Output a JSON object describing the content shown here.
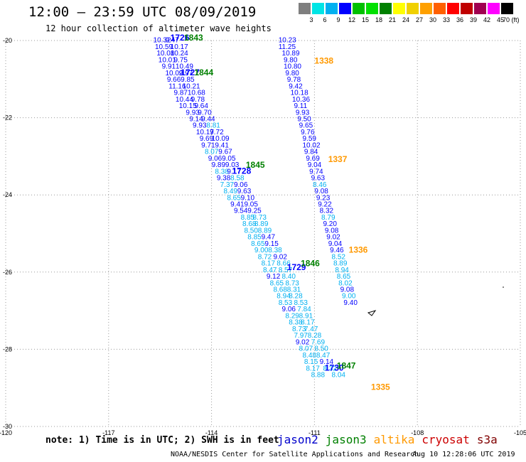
{
  "title": "12:00 – 23:59 UTC 08/09/2019",
  "subtitle": "12 hour collection of altimeter wave heights",
  "colorbar": {
    "ticks": [
      "3",
      "6",
      "9",
      "12",
      "15",
      "18",
      "21",
      "24",
      "27",
      "30",
      "33",
      "36",
      "39",
      "42",
      "45",
      "70 (ft)"
    ],
    "colors": [
      "#7f7f7f",
      "#00e5e5",
      "#00b0f0",
      "#0000ff",
      "#00c000",
      "#00e000",
      "#008000",
      "#ffff00",
      "#f0d000",
      "#ffa000",
      "#ff6000",
      "#ff0000",
      "#c00000",
      "#a00050",
      "#ff00ff",
      "#000000"
    ]
  },
  "chart_data": {
    "type": "scatter",
    "x_ticks": [
      "-120",
      "-117",
      "-114",
      "-111",
      "-108",
      "-105"
    ],
    "y_ticks": [
      "-20",
      "-22",
      "-24",
      "-26",
      "-28",
      "-30"
    ],
    "xlim": [
      -120,
      -105
    ],
    "ylim": [
      -30,
      -20
    ],
    "grid": true,
    "series": [
      {
        "name": "jason2",
        "color": "#0000cc"
      },
      {
        "name": "jason3",
        "color": "#008000"
      },
      {
        "name": "altika",
        "color": "#ff9900"
      }
    ],
    "points": [
      {
        "x": -115.7,
        "y": -20.05,
        "v": "10.32",
        "c": "#0000ff"
      },
      {
        "x": -115.35,
        "y": -20.05,
        "v": "9.47",
        "c": "#0000ff"
      },
      {
        "x": -115.65,
        "y": -20.22,
        "v": "10.59",
        "c": "#0000ff"
      },
      {
        "x": -115.2,
        "y": -20.22,
        "v": "10.17",
        "c": "#0000ff"
      },
      {
        "x": -115.6,
        "y": -20.39,
        "v": "10.08",
        "c": "#0000ff"
      },
      {
        "x": -115.2,
        "y": -20.39,
        "v": "10.24",
        "c": "#0000ff"
      },
      {
        "x": -115.55,
        "y": -20.56,
        "v": "10.01",
        "c": "#0000ff"
      },
      {
        "x": -115.1,
        "y": -20.56,
        "v": "9.75",
        "c": "#0000ff"
      },
      {
        "x": -115.45,
        "y": -20.73,
        "v": "9.91",
        "c": "#0000ff"
      },
      {
        "x": -115.05,
        "y": -20.73,
        "v": "10.49",
        "c": "#0000ff"
      },
      {
        "x": -115.35,
        "y": -20.9,
        "v": "10.02",
        "c": "#0000ff"
      },
      {
        "x": -114.95,
        "y": -20.9,
        "v": "9.97",
        "c": "#0000ff"
      },
      {
        "x": -115.3,
        "y": -21.07,
        "v": "9.66",
        "c": "#0000ff"
      },
      {
        "x": -114.9,
        "y": -21.07,
        "v": "9.85",
        "c": "#0000ff"
      },
      {
        "x": -115.25,
        "y": -21.24,
        "v": "11.16",
        "c": "#0000ff"
      },
      {
        "x": -114.85,
        "y": -21.24,
        "v": "10.21",
        "c": "#0000ff"
      },
      {
        "x": -115.1,
        "y": -21.41,
        "v": "9.87",
        "c": "#0000ff"
      },
      {
        "x": -114.7,
        "y": -21.41,
        "v": "10.68",
        "c": "#0000ff"
      },
      {
        "x": -115.05,
        "y": -21.58,
        "v": "10.44",
        "c": "#0000ff"
      },
      {
        "x": -114.6,
        "y": -21.58,
        "v": "9.78",
        "c": "#0000ff"
      },
      {
        "x": -114.95,
        "y": -21.75,
        "v": "10.15",
        "c": "#0000ff"
      },
      {
        "x": -114.5,
        "y": -21.75,
        "v": "9.64",
        "c": "#0000ff"
      },
      {
        "x": -114.75,
        "y": -21.92,
        "v": "9.93",
        "c": "#0000ff"
      },
      {
        "x": -114.4,
        "y": -21.92,
        "v": "9.70",
        "c": "#0000ff"
      },
      {
        "x": -114.65,
        "y": -22.09,
        "v": "9.14",
        "c": "#0000ff"
      },
      {
        "x": -114.3,
        "y": -22.09,
        "v": "9.44",
        "c": "#0000ff"
      },
      {
        "x": -114.55,
        "y": -22.26,
        "v": "9.93",
        "c": "#0000ff"
      },
      {
        "x": -114.15,
        "y": -22.26,
        "v": "8.81",
        "c": "#00b0f0"
      },
      {
        "x": -114.45,
        "y": -22.43,
        "v": "10.17",
        "c": "#0000ff"
      },
      {
        "x": -114.05,
        "y": -22.43,
        "v": "9.72",
        "c": "#0000ff"
      },
      {
        "x": -114.35,
        "y": -22.6,
        "v": "9.69",
        "c": "#0000ff"
      },
      {
        "x": -114.0,
        "y": -22.6,
        "v": "10.09",
        "c": "#0000ff"
      },
      {
        "x": -114.3,
        "y": -22.77,
        "v": "9.71",
        "c": "#0000ff"
      },
      {
        "x": -113.9,
        "y": -22.77,
        "v": "9.41",
        "c": "#0000ff"
      },
      {
        "x": -114.2,
        "y": -22.94,
        "v": "8.07",
        "c": "#00b0f0"
      },
      {
        "x": -113.8,
        "y": -22.94,
        "v": "9.67",
        "c": "#0000ff"
      },
      {
        "x": -114.1,
        "y": -23.11,
        "v": "9.06",
        "c": "#0000ff"
      },
      {
        "x": -113.7,
        "y": -23.11,
        "v": "9.05",
        "c": "#0000ff"
      },
      {
        "x": -114.0,
        "y": -23.28,
        "v": "9.89",
        "c": "#0000ff"
      },
      {
        "x": -113.6,
        "y": -23.28,
        "v": "9.03",
        "c": "#0000ff"
      },
      {
        "x": -113.9,
        "y": -23.45,
        "v": "8.38",
        "c": "#00b0f0"
      },
      {
        "x": -113.55,
        "y": -23.45,
        "v": "9.17",
        "c": "#0000ff"
      },
      {
        "x": -113.85,
        "y": -23.62,
        "v": "9.38",
        "c": "#0000ff"
      },
      {
        "x": -113.45,
        "y": -23.62,
        "v": "8.58",
        "c": "#00b0f0"
      },
      {
        "x": -113.75,
        "y": -23.79,
        "v": "7.37",
        "c": "#00b0f0"
      },
      {
        "x": -113.35,
        "y": -23.79,
        "v": "9.06",
        "c": "#0000ff"
      },
      {
        "x": -113.65,
        "y": -23.96,
        "v": "8.49",
        "c": "#00b0f0"
      },
      {
        "x": -113.25,
        "y": -23.96,
        "v": "9.63",
        "c": "#0000ff"
      },
      {
        "x": -113.55,
        "y": -24.13,
        "v": "8.65",
        "c": "#00b0f0"
      },
      {
        "x": -113.15,
        "y": -24.13,
        "v": "9.10",
        "c": "#0000ff"
      },
      {
        "x": -113.45,
        "y": -24.3,
        "v": "9.41",
        "c": "#0000ff"
      },
      {
        "x": -113.05,
        "y": -24.3,
        "v": "9.05",
        "c": "#0000ff"
      },
      {
        "x": -113.35,
        "y": -24.47,
        "v": "9.54",
        "c": "#0000ff"
      },
      {
        "x": -112.95,
        "y": -24.47,
        "v": "9.25",
        "c": "#0000ff"
      },
      {
        "x": -113.15,
        "y": -24.64,
        "v": "8.85",
        "c": "#00b0f0"
      },
      {
        "x": -112.8,
        "y": -24.64,
        "v": "8.73",
        "c": "#00b0f0"
      },
      {
        "x": -113.1,
        "y": -24.81,
        "v": "8.68",
        "c": "#00b0f0"
      },
      {
        "x": -112.75,
        "y": -24.81,
        "v": "8.89",
        "c": "#00b0f0"
      },
      {
        "x": -113.05,
        "y": -24.98,
        "v": "8.50",
        "c": "#00b0f0"
      },
      {
        "x": -112.65,
        "y": -24.98,
        "v": "8.89",
        "c": "#00b0f0"
      },
      {
        "x": -112.95,
        "y": -25.15,
        "v": "8.85",
        "c": "#00b0f0"
      },
      {
        "x": -112.55,
        "y": -25.15,
        "v": "9.47",
        "c": "#0000ff"
      },
      {
        "x": -112.85,
        "y": -25.32,
        "v": "8.65",
        "c": "#00b0f0"
      },
      {
        "x": -112.45,
        "y": -25.32,
        "v": "9.15",
        "c": "#0000ff"
      },
      {
        "x": -112.75,
        "y": -25.49,
        "v": "9.00",
        "c": "#00b0f0"
      },
      {
        "x": -112.35,
        "y": -25.49,
        "v": "8.38",
        "c": "#00b0f0"
      },
      {
        "x": -112.65,
        "y": -25.66,
        "v": "8.72",
        "c": "#00b0f0"
      },
      {
        "x": -112.2,
        "y": -25.66,
        "v": "9.02",
        "c": "#0000ff"
      },
      {
        "x": -112.55,
        "y": -25.83,
        "v": "8.17",
        "c": "#00b0f0"
      },
      {
        "x": -112.1,
        "y": -25.83,
        "v": "8.66",
        "c": "#00b0f0"
      },
      {
        "x": -112.5,
        "y": -26.0,
        "v": "8.47",
        "c": "#00b0f0"
      },
      {
        "x": -112.05,
        "y": -26.0,
        "v": "8.57",
        "c": "#00b0f0"
      },
      {
        "x": -112.4,
        "y": -26.17,
        "v": "9.12",
        "c": "#0000ff"
      },
      {
        "x": -111.95,
        "y": -26.17,
        "v": "8.40",
        "c": "#00b0f0"
      },
      {
        "x": -112.3,
        "y": -26.34,
        "v": "8.65",
        "c": "#00b0f0"
      },
      {
        "x": -111.85,
        "y": -26.34,
        "v": "8.73",
        "c": "#00b0f0"
      },
      {
        "x": -112.2,
        "y": -26.51,
        "v": "8.68",
        "c": "#00b0f0"
      },
      {
        "x": -111.8,
        "y": -26.51,
        "v": "8.31",
        "c": "#00b0f0"
      },
      {
        "x": -112.1,
        "y": -26.68,
        "v": "8.94",
        "c": "#00b0f0"
      },
      {
        "x": -111.75,
        "y": -26.68,
        "v": "8.28",
        "c": "#00b0f0"
      },
      {
        "x": -112.05,
        "y": -26.85,
        "v": "8.53",
        "c": "#00b0f0"
      },
      {
        "x": -111.6,
        "y": -26.85,
        "v": "8.53",
        "c": "#00b0f0"
      },
      {
        "x": -111.95,
        "y": -27.02,
        "v": "9.06",
        "c": "#0000ff"
      },
      {
        "x": -111.5,
        "y": -27.02,
        "v": "7.84",
        "c": "#00b0f0"
      },
      {
        "x": -111.85,
        "y": -27.19,
        "v": "8.29",
        "c": "#00b0f0"
      },
      {
        "x": -111.45,
        "y": -27.19,
        "v": "8.91",
        "c": "#00b0f0"
      },
      {
        "x": -111.75,
        "y": -27.36,
        "v": "8.38",
        "c": "#00b0f0"
      },
      {
        "x": -111.4,
        "y": -27.36,
        "v": "8.17",
        "c": "#00b0f0"
      },
      {
        "x": -111.65,
        "y": -27.53,
        "v": "8.73",
        "c": "#00b0f0"
      },
      {
        "x": -111.3,
        "y": -27.53,
        "v": "7.47",
        "c": "#00b0f0"
      },
      {
        "x": -111.6,
        "y": -27.7,
        "v": "7.97",
        "c": "#00b0f0"
      },
      {
        "x": -111.2,
        "y": -27.7,
        "v": "8.28",
        "c": "#00b0f0"
      },
      {
        "x": -111.55,
        "y": -27.87,
        "v": "9.02",
        "c": "#0000ff"
      },
      {
        "x": -111.1,
        "y": -27.87,
        "v": "7.69",
        "c": "#00b0f0"
      },
      {
        "x": -111.45,
        "y": -28.04,
        "v": "8.07",
        "c": "#00b0f0"
      },
      {
        "x": -111.0,
        "y": -28.04,
        "v": "8.50",
        "c": "#00b0f0"
      },
      {
        "x": -111.35,
        "y": -28.21,
        "v": "8.48",
        "c": "#00b0f0"
      },
      {
        "x": -110.95,
        "y": -28.21,
        "v": "8.47",
        "c": "#00b0f0"
      },
      {
        "x": -111.3,
        "y": -28.38,
        "v": "8.15",
        "c": "#00b0f0"
      },
      {
        "x": -110.85,
        "y": -28.38,
        "v": "9.14",
        "c": "#0000ff"
      },
      {
        "x": -111.25,
        "y": -28.55,
        "v": "8.17",
        "c": "#00b0f0"
      },
      {
        "x": -110.75,
        "y": -28.55,
        "v": "8.32",
        "c": "#00b0f0"
      },
      {
        "x": -111.1,
        "y": -28.72,
        "v": "8.88",
        "c": "#00b0f0"
      },
      {
        "x": -110.5,
        "y": -28.72,
        "v": "8.04",
        "c": "#00b0f0"
      },
      {
        "x": -112.05,
        "y": -20.05,
        "v": "10.23",
        "c": "#0000ff"
      },
      {
        "x": -112.05,
        "y": -20.22,
        "v": "11.25",
        "c": "#0000ff"
      },
      {
        "x": -111.95,
        "y": -20.39,
        "v": "10.89",
        "c": "#0000ff"
      },
      {
        "x": -111.9,
        "y": -20.56,
        "v": "9.80",
        "c": "#0000ff"
      },
      {
        "x": -111.9,
        "y": -20.73,
        "v": "10.80",
        "c": "#0000ff"
      },
      {
        "x": -111.85,
        "y": -20.9,
        "v": "9.80",
        "c": "#0000ff"
      },
      {
        "x": -111.8,
        "y": -21.07,
        "v": "9.78",
        "c": "#0000ff"
      },
      {
        "x": -111.75,
        "y": -21.24,
        "v": "9.42",
        "c": "#0000ff"
      },
      {
        "x": -111.7,
        "y": -21.41,
        "v": "10.18",
        "c": "#0000ff"
      },
      {
        "x": -111.65,
        "y": -21.58,
        "v": "10.36",
        "c": "#0000ff"
      },
      {
        "x": -111.6,
        "y": -21.75,
        "v": "9.11",
        "c": "#0000ff"
      },
      {
        "x": -111.55,
        "y": -21.92,
        "v": "9.93",
        "c": "#0000ff"
      },
      {
        "x": -111.5,
        "y": -22.09,
        "v": "9.50",
        "c": "#0000ff"
      },
      {
        "x": -111.45,
        "y": -22.26,
        "v": "9.65",
        "c": "#0000ff"
      },
      {
        "x": -111.4,
        "y": -22.43,
        "v": "9.76",
        "c": "#0000ff"
      },
      {
        "x": -111.35,
        "y": -22.6,
        "v": "9.59",
        "c": "#0000ff"
      },
      {
        "x": -111.35,
        "y": -22.77,
        "v": "10.02",
        "c": "#0000ff"
      },
      {
        "x": -111.3,
        "y": -22.94,
        "v": "9.84",
        "c": "#0000ff"
      },
      {
        "x": -111.25,
        "y": -23.11,
        "v": "9.69",
        "c": "#0000ff"
      },
      {
        "x": -111.2,
        "y": -23.28,
        "v": "9.04",
        "c": "#0000ff"
      },
      {
        "x": -111.15,
        "y": -23.45,
        "v": "9.74",
        "c": "#0000ff"
      },
      {
        "x": -111.1,
        "y": -23.62,
        "v": "9.63",
        "c": "#0000ff"
      },
      {
        "x": -111.05,
        "y": -23.79,
        "v": "8.46",
        "c": "#00b0f0"
      },
      {
        "x": -111.0,
        "y": -23.96,
        "v": "9.08",
        "c": "#0000ff"
      },
      {
        "x": -110.95,
        "y": -24.13,
        "v": "9.23",
        "c": "#0000ff"
      },
      {
        "x": -110.9,
        "y": -24.3,
        "v": "9.22",
        "c": "#0000ff"
      },
      {
        "x": -110.85,
        "y": -24.47,
        "v": "8.32",
        "c": "#0000ff"
      },
      {
        "x": -110.8,
        "y": -24.64,
        "v": "8.79",
        "c": "#00b0f0"
      },
      {
        "x": -110.75,
        "y": -24.81,
        "v": "9.20",
        "c": "#0000ff"
      },
      {
        "x": -110.7,
        "y": -24.98,
        "v": "9.08",
        "c": "#0000ff"
      },
      {
        "x": -110.65,
        "y": -25.15,
        "v": "9.02",
        "c": "#0000ff"
      },
      {
        "x": -110.6,
        "y": -25.32,
        "v": "9.04",
        "c": "#0000ff"
      },
      {
        "x": -110.55,
        "y": -25.49,
        "v": "9.46",
        "c": "#0000ff"
      },
      {
        "x": -110.5,
        "y": -25.66,
        "v": "8.52",
        "c": "#00b0f0"
      },
      {
        "x": -110.45,
        "y": -25.83,
        "v": "8.89",
        "c": "#00b0f0"
      },
      {
        "x": -110.4,
        "y": -26.0,
        "v": "8.94",
        "c": "#00b0f0"
      },
      {
        "x": -110.35,
        "y": -26.17,
        "v": "8.65",
        "c": "#00b0f0"
      },
      {
        "x": -110.3,
        "y": -26.34,
        "v": "8.02",
        "c": "#00b0f0"
      },
      {
        "x": -110.25,
        "y": -26.51,
        "v": "9.08",
        "c": "#0000ff"
      },
      {
        "x": -110.2,
        "y": -26.68,
        "v": "9.00",
        "c": "#00b0f0"
      },
      {
        "x": -110.15,
        "y": -26.85,
        "v": "9.40",
        "c": "#0000ff"
      }
    ],
    "pass_labels": [
      {
        "x": -115.2,
        "y": -20.0,
        "t": "1726",
        "c": "#0000ff"
      },
      {
        "x": -114.8,
        "y": -20.0,
        "t": "1843",
        "c": "#008000"
      },
      {
        "x": -114.9,
        "y": -20.9,
        "t": "1727",
        "c": "#0000ff"
      },
      {
        "x": -114.5,
        "y": -20.9,
        "t": "1844",
        "c": "#008000"
      },
      {
        "x": -113.4,
        "y": -23.45,
        "t": "1728",
        "c": "#0000ff"
      },
      {
        "x": -113.0,
        "y": -23.3,
        "t": "1845",
        "c": "#008000"
      },
      {
        "x": -111.8,
        "y": -25.95,
        "t": "1729",
        "c": "#0000ff"
      },
      {
        "x": -111.4,
        "y": -25.85,
        "t": "1846",
        "c": "#008000"
      },
      {
        "x": -110.7,
        "y": -28.55,
        "t": "1730",
        "c": "#0000ff"
      },
      {
        "x": -110.35,
        "y": -28.5,
        "t": "1847",
        "c": "#008000"
      },
      {
        "x": -111.0,
        "y": -20.6,
        "t": "1338",
        "c": "#ff9900"
      },
      {
        "x": -110.6,
        "y": -23.15,
        "t": "1337",
        "c": "#ff9900"
      },
      {
        "x": -110.0,
        "y": -25.5,
        "t": "1336",
        "c": "#ff9900"
      },
      {
        "x": -109.35,
        "y": -29.05,
        "t": "1335",
        "c": "#ff9900"
      }
    ]
  },
  "note": "note: 1) Time is in UTC; 2) SWH is in feet",
  "legend": [
    {
      "label": "jason2",
      "color": "#0000cc"
    },
    {
      "label": "jason3",
      "color": "#008000"
    },
    {
      "label": "altika",
      "color": "#ff9900"
    },
    {
      "label": "cryosat",
      "color": "#cc0000"
    },
    {
      "label": "s3a",
      "color": "#800000"
    }
  ],
  "footer": "NOAA/NESDIS Center for Satellite Applications and Research",
  "footer_time": "Aug 10 12:28:06 UTC 2019"
}
